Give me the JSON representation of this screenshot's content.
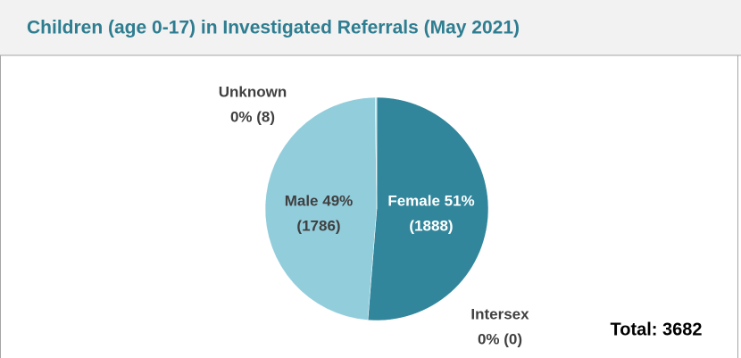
{
  "chart_data": {
    "type": "pie",
    "title": "Children (age 0-17) in Investigated Referrals (May 2021)",
    "categories": [
      "Female",
      "Intersex",
      "Male",
      "Unknown"
    ],
    "values": [
      1888,
      0,
      1786,
      8
    ],
    "value_labels": [
      [
        "Female 51%",
        "(1888)"
      ],
      [
        "Intersex",
        "0% (0)"
      ],
      [
        "Male 49%",
        "(1786)"
      ],
      [
        "Unknown",
        "0% (8)"
      ]
    ],
    "colors": [
      "#31869b",
      "#4bacc6",
      "#92cddc",
      "#b7dee8"
    ],
    "annotations": [
      "Total: 3682"
    ]
  }
}
